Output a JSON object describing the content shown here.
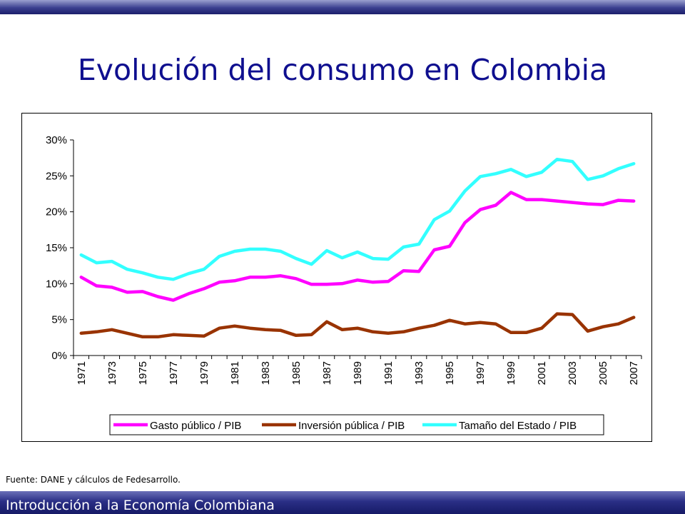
{
  "slide": {
    "title": "Evolución del consumo en Colombia",
    "source": "Fuente: DANE y cálculos de Fedesarrollo.",
    "footer": "Introducción a la Economía Colombiana"
  },
  "colors": {
    "title": "#0f0f8f",
    "bar": "#1b1f6b",
    "gasto": "#ff00ff",
    "inversion": "#993300",
    "tamano": "#33ffff"
  },
  "chart_data": {
    "type": "line",
    "title": "",
    "xlabel": "",
    "ylabel": "",
    "ylim": [
      0,
      0.3
    ],
    "yticks": [
      "0%",
      "5%",
      "10%",
      "15%",
      "20%",
      "25%",
      "30%"
    ],
    "xticks": [
      "1971",
      "1973",
      "1975",
      "1977",
      "1979",
      "1981",
      "1983",
      "1985",
      "1987",
      "1989",
      "1991",
      "1993",
      "1995",
      "1997",
      "1999",
      "2001",
      "2003",
      "2005",
      "2007"
    ],
    "x": [
      1971,
      1972,
      1973,
      1974,
      1975,
      1976,
      1977,
      1978,
      1979,
      1980,
      1981,
      1982,
      1983,
      1984,
      1985,
      1986,
      1987,
      1988,
      1989,
      1990,
      1991,
      1992,
      1993,
      1994,
      1995,
      1996,
      1997,
      1998,
      1999,
      2000,
      2001,
      2002,
      2003,
      2004,
      2005,
      2006,
      2007
    ],
    "grid": false,
    "legend_position": "bottom",
    "series": [
      {
        "name": "Gasto público / PIB",
        "color": "#ff00ff",
        "values": [
          0.109,
          0.097,
          0.095,
          0.088,
          0.089,
          0.082,
          0.077,
          0.086,
          0.093,
          0.102,
          0.104,
          0.109,
          0.109,
          0.111,
          0.107,
          0.099,
          0.099,
          0.1,
          0.105,
          0.102,
          0.103,
          0.118,
          0.117,
          0.147,
          0.152,
          0.185,
          0.203,
          0.209,
          0.227,
          0.217,
          0.217,
          0.215,
          0.213,
          0.211,
          0.21,
          0.216,
          0.215
        ]
      },
      {
        "name": "Inversión pública / PIB",
        "color": "#993300",
        "values": [
          0.031,
          0.033,
          0.036,
          0.031,
          0.026,
          0.026,
          0.029,
          0.028,
          0.027,
          0.038,
          0.041,
          0.038,
          0.036,
          0.035,
          0.028,
          0.029,
          0.047,
          0.036,
          0.038,
          0.033,
          0.031,
          0.033,
          0.038,
          0.042,
          0.049,
          0.044,
          0.046,
          0.044,
          0.032,
          0.032,
          0.038,
          0.058,
          0.057,
          0.034,
          0.04,
          0.044,
          0.053
        ]
      },
      {
        "name": "Tamaño  del Estado / PIB",
        "color": "#33ffff",
        "values": [
          0.14,
          0.129,
          0.131,
          0.12,
          0.115,
          0.109,
          0.106,
          0.114,
          0.12,
          0.138,
          0.145,
          0.148,
          0.148,
          0.145,
          0.135,
          0.127,
          0.146,
          0.136,
          0.144,
          0.135,
          0.134,
          0.151,
          0.155,
          0.189,
          0.201,
          0.229,
          0.249,
          0.253,
          0.259,
          0.249,
          0.255,
          0.273,
          0.27,
          0.245,
          0.25,
          0.26,
          0.267
        ]
      }
    ]
  }
}
